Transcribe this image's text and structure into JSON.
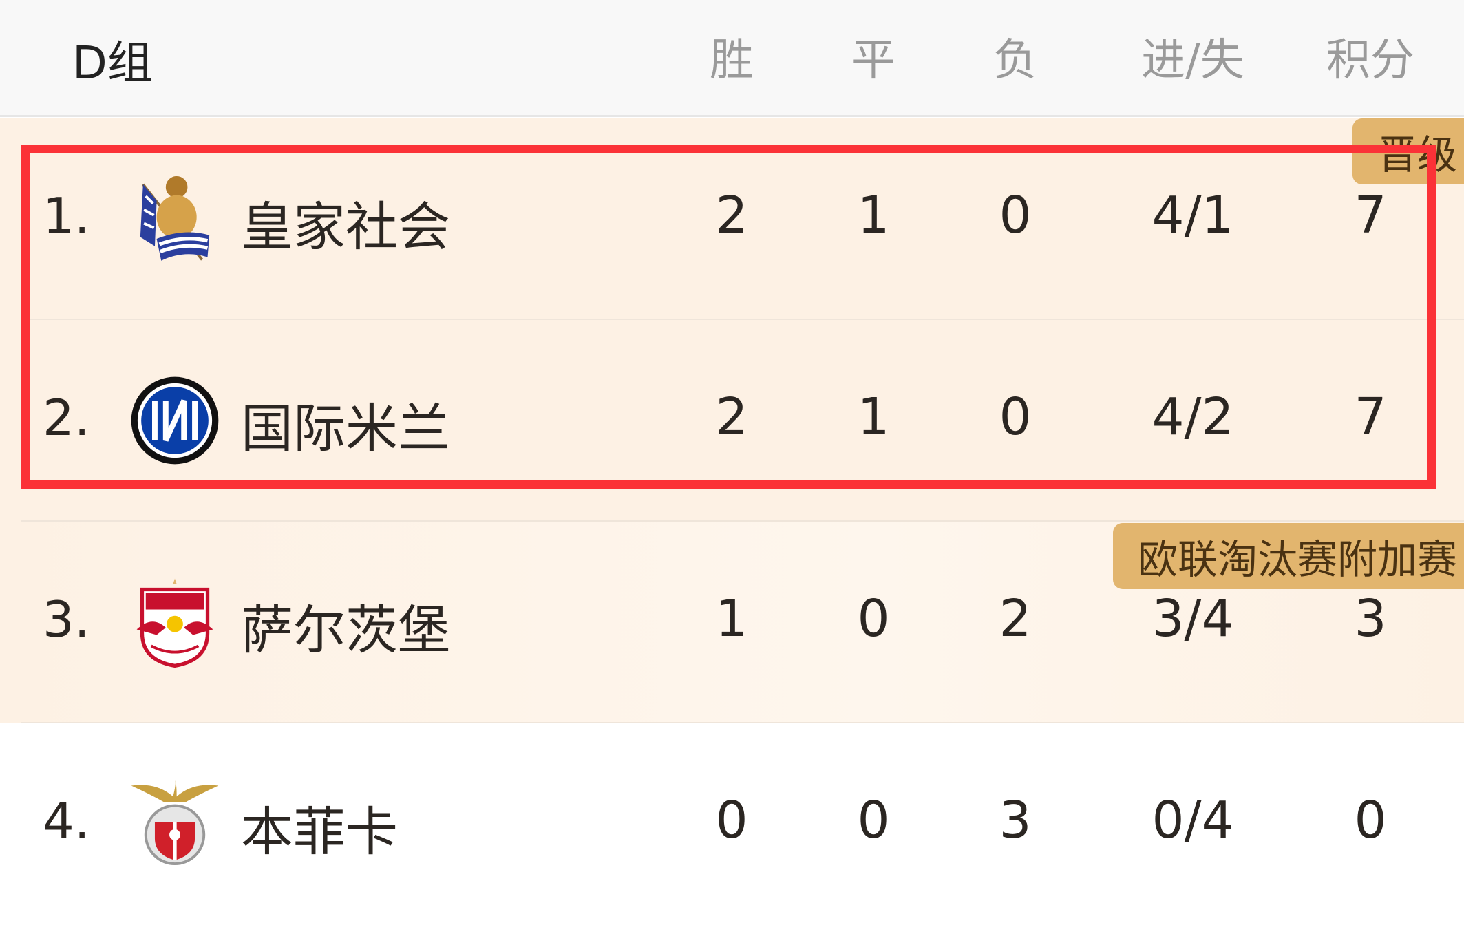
{
  "header": {
    "group": "D组",
    "columns": [
      "胜",
      "平",
      "负",
      "进/失",
      "积分"
    ]
  },
  "badges": {
    "qualified": "晋级",
    "europa_playoff": "欧联淘汰赛附加赛"
  },
  "colors": {
    "highlight_border": "#fb3237",
    "badge": "#e2b56e",
    "row_bg": "#fdf1e4"
  },
  "teams": [
    {
      "rank": "1.",
      "name": "皇家社会",
      "crest": "real-sociedad-crest",
      "w": "2",
      "d": "1",
      "l": "0",
      "gf_ga": "4/1",
      "pts": "7"
    },
    {
      "rank": "2.",
      "name": "国际米兰",
      "crest": "inter-milan-crest",
      "w": "2",
      "d": "1",
      "l": "0",
      "gf_ga": "4/2",
      "pts": "7"
    },
    {
      "rank": "3.",
      "name": "萨尔茨堡",
      "crest": "salzburg-crest",
      "w": "1",
      "d": "0",
      "l": "2",
      "gf_ga": "3/4",
      "pts": "3"
    },
    {
      "rank": "4.",
      "name": "本菲卡",
      "crest": "benfica-crest",
      "w": "0",
      "d": "0",
      "l": "3",
      "gf_ga": "0/4",
      "pts": "0"
    }
  ]
}
